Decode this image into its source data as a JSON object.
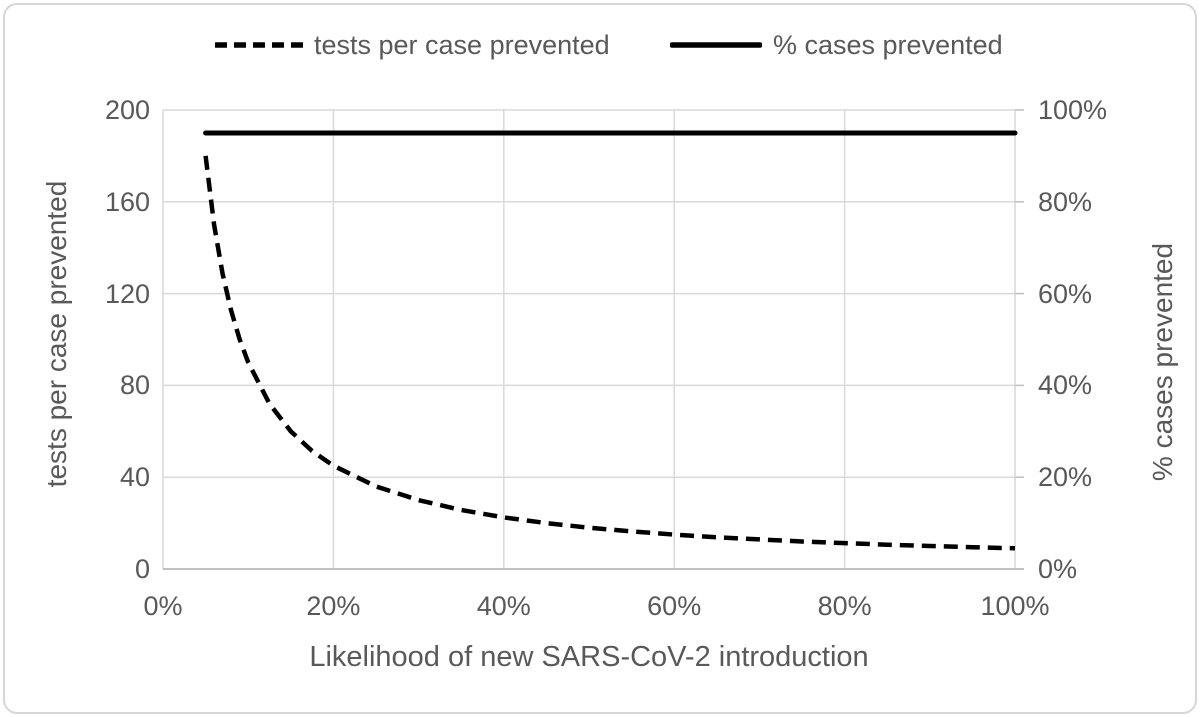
{
  "legend": {
    "items": [
      {
        "label": "tests per case prevented",
        "style": "dashed"
      },
      {
        "label": "% cases prevented",
        "style": "solid"
      }
    ]
  },
  "chart_data": {
    "type": "line",
    "title": "",
    "xlabel": "Likelihood of new SARS-CoV-2 introduction",
    "y1label": "tests per case prevented",
    "y2label": "% cases prevented",
    "xlim": [
      0,
      100
    ],
    "y1lim": [
      0,
      200
    ],
    "y2lim": [
      0,
      100
    ],
    "grid": true,
    "legend_position": "top",
    "x_ticks": [
      "0%",
      "20%",
      "40%",
      "60%",
      "80%",
      "100%"
    ],
    "x_tick_values": [
      0,
      20,
      40,
      60,
      80,
      100
    ],
    "y1_ticks": [
      "0",
      "40",
      "80",
      "120",
      "160",
      "200"
    ],
    "y1_tick_values": [
      0,
      40,
      80,
      120,
      160,
      200
    ],
    "y2_ticks": [
      "0%",
      "20%",
      "40%",
      "60%",
      "80%",
      "100%"
    ],
    "y2_tick_values": [
      0,
      20,
      40,
      60,
      80,
      100
    ],
    "series": [
      {
        "name": "tests per case prevented",
        "axis": "y1",
        "line_style": "dashed",
        "color": "#000000",
        "x": [
          5,
          6,
          7,
          8,
          9,
          10,
          12.5,
          15,
          17.5,
          20,
          25,
          30,
          35,
          40,
          45,
          50,
          55,
          60,
          65,
          70,
          75,
          80,
          85,
          90,
          95,
          100
        ],
        "y": [
          180,
          150,
          128.6,
          112.5,
          100,
          90,
          72,
          60,
          51.4,
          45,
          36,
          30,
          25.7,
          22.5,
          20,
          18,
          16.4,
          15,
          13.8,
          12.9,
          12,
          11.3,
          10.6,
          10,
          9.5,
          9
        ]
      },
      {
        "name": "% cases prevented",
        "axis": "y2",
        "line_style": "solid",
        "color": "#000000",
        "x": [
          5,
          100
        ],
        "y": [
          95,
          95
        ]
      }
    ]
  },
  "colors": {
    "text": "#595959",
    "gridline": "#d9d9d9",
    "axis_line": "#bfbfbf",
    "series": "#000000",
    "frame_border": "#d6d6d6"
  }
}
